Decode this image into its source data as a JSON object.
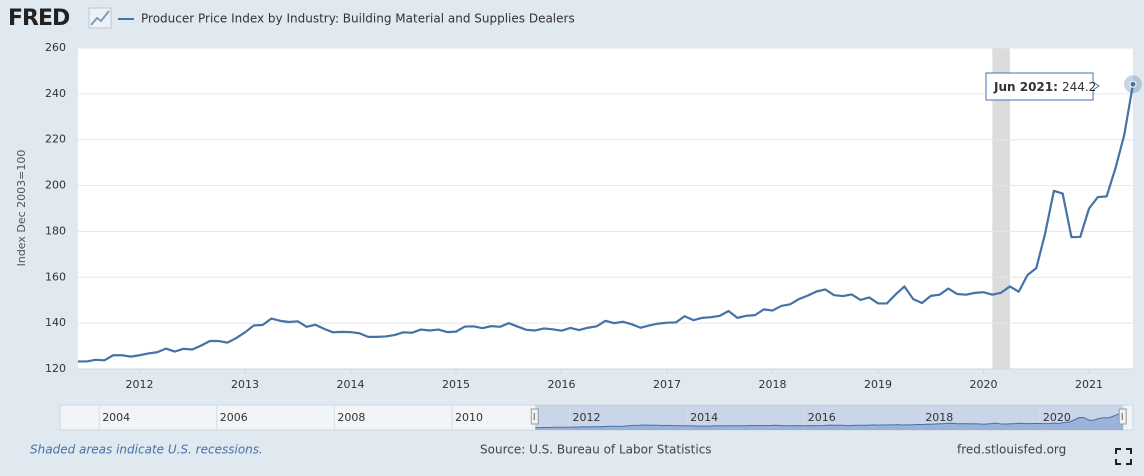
{
  "chart_data": {
    "type": "line",
    "logo": "FRED",
    "y_label": "Index Dec 2003=100",
    "series": [
      {
        "name": "Producer Price Index by Industry: Building Material and Supplies Dealers",
        "color": "#4572a7",
        "values": [
          123.3,
          123.3,
          124,
          123.8,
          126,
          126,
          125.4,
          126,
          126.8,
          127.3,
          128.9,
          127.6,
          128.8,
          128.5,
          130.2,
          132.2,
          132.2,
          131.5,
          133.5,
          136,
          139,
          139.2,
          142,
          141,
          140.5,
          140.8,
          138.4,
          139.3,
          137.5,
          136,
          136.2,
          136.1,
          135.6,
          134,
          134,
          134.2,
          134.8,
          136,
          135.8,
          137.2,
          136.8,
          137.2,
          136.1,
          136.3,
          138.5,
          138.6,
          137.8,
          138.7,
          138.4,
          140,
          138.5,
          137.1,
          136.8,
          137.7,
          137.3,
          136.7,
          137.9,
          137,
          138,
          138.6,
          141,
          140,
          140.6,
          139.5,
          138,
          139,
          139.8,
          140.2,
          140.3,
          143,
          141.3,
          142.3,
          142.6,
          143.2,
          145.3,
          142.3,
          143.2,
          143.5,
          146,
          145.5,
          147.5,
          148.2,
          150.5,
          152,
          153.8,
          154.7,
          152.2,
          151.8,
          152.5,
          150.1,
          151.2,
          148.6,
          148.6,
          152.5,
          156,
          150.5,
          148.8,
          151.9,
          152.4,
          155.1,
          152.7,
          152.4,
          153.2,
          153.5,
          152.4,
          153.3,
          156,
          153.7,
          161,
          164,
          179,
          197.7,
          196.5,
          177.5,
          177.6,
          190,
          195,
          195.3,
          207.5,
          222,
          244.2
        ]
      }
    ],
    "x": [
      "2011-06",
      "2011-07",
      "2011-08",
      "2011-09",
      "2011-10",
      "2011-11",
      "2011-12",
      "2012-01",
      "2012-02",
      "2012-03",
      "2012-04",
      "2012-05",
      "2012-06",
      "2012-07",
      "2012-08",
      "2012-09",
      "2012-10",
      "2012-11",
      "2012-12",
      "2013-01",
      "2013-02",
      "2013-03",
      "2013-04",
      "2013-05",
      "2013-06",
      "2013-07",
      "2013-08",
      "2013-09",
      "2013-10",
      "2013-11",
      "2013-12",
      "2014-01",
      "2014-02",
      "2014-03",
      "2014-04",
      "2014-05",
      "2014-06",
      "2014-07",
      "2014-08",
      "2014-09",
      "2014-10",
      "2014-11",
      "2014-12",
      "2015-01",
      "2015-02",
      "2015-03",
      "2015-04",
      "2015-05",
      "2015-06",
      "2015-07",
      "2015-08",
      "2015-09",
      "2015-10",
      "2015-11",
      "2015-12",
      "2016-01",
      "2016-02",
      "2016-03",
      "2016-04",
      "2016-05",
      "2016-06",
      "2016-07",
      "2016-08",
      "2016-09",
      "2016-10",
      "2016-11",
      "2016-12",
      "2017-01",
      "2017-02",
      "2017-03",
      "2017-04",
      "2017-05",
      "2017-06",
      "2017-07",
      "2017-08",
      "2017-09",
      "2017-10",
      "2017-11",
      "2017-12",
      "2018-01",
      "2018-02",
      "2018-03",
      "2018-04",
      "2018-05",
      "2018-06",
      "2018-07",
      "2018-08",
      "2018-09",
      "2018-10",
      "2018-11",
      "2018-12",
      "2019-01",
      "2019-02",
      "2019-03",
      "2019-04",
      "2019-05",
      "2019-06",
      "2019-07",
      "2019-08",
      "2019-09",
      "2019-10",
      "2019-11",
      "2019-12",
      "2020-01",
      "2020-02",
      "2020-03",
      "2020-04",
      "2020-05",
      "2020-06",
      "2020-07",
      "2020-08",
      "2020-09",
      "2020-10",
      "2020-11",
      "2020-12",
      "2021-01",
      "2021-02",
      "2021-03",
      "2021-04",
      "2021-05",
      "2021-06"
    ],
    "xlim": [
      "2011-06",
      "2021-06"
    ],
    "xticks": [
      "2012",
      "2013",
      "2014",
      "2015",
      "2016",
      "2017",
      "2018",
      "2019",
      "2020",
      "2021"
    ],
    "ylim": [
      120,
      260
    ],
    "yticks": [
      120,
      140,
      160,
      180,
      200,
      220,
      240,
      260
    ],
    "grid": true,
    "recessions": [
      {
        "start": "2020-02",
        "end": "2020-04"
      }
    ],
    "tooltip": {
      "label": "Jun 2021:",
      "value": 244.2
    },
    "navigator": {
      "xlim": [
        "2003-05",
        "2021-08"
      ],
      "xticks": [
        "2004",
        "2006",
        "2008",
        "2010",
        "2012",
        "2014",
        "2016",
        "2018",
        "2020"
      ]
    },
    "recession_note": "Shaded areas indicate U.S. recessions.",
    "source": "Source: U.S. Bureau of Labor Statistics",
    "site": "fred.stlouisfed.org"
  }
}
